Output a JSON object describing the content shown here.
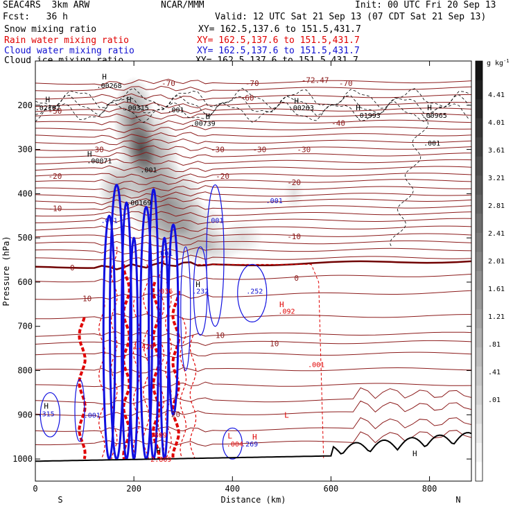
{
  "header": {
    "line1_left": "SEAC4RS  3km ARW",
    "line1_center": "NCAR/MMM",
    "line1_right": "Init: 00 UTC Fri 20 Sep 13",
    "line2_left": "Fcst:   36 h",
    "line2_right": "Valid: 12 UTC Sat 21 Sep 13 (07 CDT Sat 21 Sep 13)",
    "fields": [
      {
        "name": "Snow mixing ratio",
        "xy": "XY= 162.5,137.6 to 151.5,431.7",
        "color": "#000000"
      },
      {
        "name": "Rain water mixing ratio",
        "xy": "XY= 162.5,137.6 to 151.5,431.7",
        "color": "#e00000"
      },
      {
        "name": "Cloud water mixing ratio",
        "xy": "XY= 162.5,137.6 to 151.5,431.7",
        "color": "#1010d0"
      },
      {
        "name": "Cloud ice mixing ratio",
        "xy": "XY= 162.5,137.6 to 151.5,431.7",
        "color": "#000000"
      }
    ]
  },
  "chart_data": {
    "type": "heatmap",
    "xlabel": "Distance (km)",
    "ylabel": "Pressure (hPa)",
    "xlim": [
      0,
      885
    ],
    "ylim": [
      1050,
      100
    ],
    "x_ticks": [
      0,
      200,
      400,
      600,
      800
    ],
    "y_ticks": [
      200,
      300,
      400,
      500,
      600,
      700,
      800,
      900,
      1000
    ],
    "x_end_labels": {
      "left": "S",
      "right": "N"
    },
    "colorbar": {
      "unit": "g kg",
      "unit_exp": "-1",
      "ticks": [
        "4.41",
        "4.01",
        "3.61",
        "3.21",
        "2.81",
        "2.41",
        "2.01",
        "1.61",
        "1.21",
        ".81",
        ".41",
        ".01"
      ]
    },
    "temperature_contours": [
      {
        "label": "-70",
        "points": [
          [
            270,
            150
          ],
          [
            440,
            150
          ],
          [
            630,
            150
          ]
        ]
      },
      {
        "label": "-72.47",
        "points": [
          [
            568,
            143
          ]
        ]
      },
      {
        "label": "-60",
        "points": [
          [
            430,
            183
          ]
        ]
      },
      {
        "label": "-50",
        "points": [
          [
            40,
            213
          ]
        ]
      },
      {
        "label": "-40",
        "points": [
          [
            615,
            240
          ]
        ]
      },
      {
        "label": "-30",
        "points": [
          [
            125,
            300
          ],
          [
            370,
            300
          ],
          [
            455,
            300
          ],
          [
            545,
            300
          ]
        ]
      },
      {
        "label": "-20",
        "points": [
          [
            40,
            360
          ],
          [
            380,
            360
          ],
          [
            525,
            374
          ]
        ]
      },
      {
        "label": "-10",
        "points": [
          [
            40,
            433
          ],
          [
            525,
            497
          ]
        ]
      },
      {
        "label": "0",
        "points": [
          [
            75,
            567
          ],
          [
            530,
            591
          ]
        ]
      },
      {
        "label": "10",
        "points": [
          [
            105,
            637
          ],
          [
            375,
            720
          ],
          [
            485,
            739
          ]
        ]
      },
      {
        "label": "20",
        "points": [
          [
            285,
            899
          ]
        ]
      }
    ],
    "cloud_ice_annotations": [
      {
        "label": ".00268",
        "x": 150,
        "p": 155
      },
      {
        "label": ".02102",
        "x": 25,
        "p": 205
      },
      {
        "label": ".00315",
        "x": 205,
        "p": 205
      },
      {
        "label": ".001",
        "x": 285,
        "p": 210
      },
      {
        "label": ".00739",
        "x": 340,
        "p": 240
      },
      {
        "label": ".00263",
        "x": 540,
        "p": 205
      },
      {
        "label": ".01993",
        "x": 675,
        "p": 222
      },
      {
        "label": ".00965",
        "x": 810,
        "p": 222
      },
      {
        "label": ".001",
        "x": 805,
        "p": 285
      },
      {
        "label": ".00071",
        "x": 130,
        "p": 325
      },
      {
        "label": ".001",
        "x": 230,
        "p": 345
      },
      {
        "label": ".00169",
        "x": 210,
        "p": 420
      }
    ],
    "cloud_water_annotations": [
      {
        "label": ".001",
        "x": 150,
        "p": 460
      },
      {
        "label": ".001",
        "x": 365,
        "p": 460
      },
      {
        "label": ".001",
        "x": 485,
        "p": 415
      },
      {
        "label": ".001",
        "x": 262,
        "p": 534
      },
      {
        "label": ".232",
        "x": 335,
        "p": 620
      },
      {
        "label": ".252",
        "x": 445,
        "p": 620
      },
      {
        "label": ".001",
        "x": 115,
        "p": 900
      },
      {
        "label": ".269",
        "x": 435,
        "p": 965
      },
      {
        "label": ".315",
        "x": 22,
        "p": 897
      }
    ],
    "rain_annotations": [
      {
        "label": ".092",
        "x": 510,
        "p": 665
      },
      {
        "label": ".001",
        "x": 570,
        "p": 786
      },
      {
        "label": ".036",
        "x": 262,
        "p": 620
      },
      {
        "label": ".004",
        "x": 405,
        "p": 965
      },
      {
        "label": "2.869",
        "x": 255,
        "p": 1000
      },
      {
        "label": ".809",
        "x": 250,
        "p": 945
      },
      {
        "label": "1.420",
        "x": 220,
        "p": 745
      }
    ],
    "extrema_markers": [
      {
        "label": "H",
        "x": 140,
        "p": 135
      },
      {
        "label": "H",
        "x": 25,
        "p": 187
      },
      {
        "label": "H",
        "x": 190,
        "p": 187
      },
      {
        "label": "H",
        "x": 350,
        "p": 225
      },
      {
        "label": "H",
        "x": 530,
        "p": 190
      },
      {
        "label": "H",
        "x": 655,
        "p": 205
      },
      {
        "label": "H",
        "x": 800,
        "p": 205
      },
      {
        "label": "H",
        "x": 110,
        "p": 310
      },
      {
        "label": "H",
        "x": 330,
        "p": 605
      },
      {
        "label": "H",
        "x": 500,
        "p": 650
      },
      {
        "label": "H",
        "x": 22,
        "p": 880
      },
      {
        "label": "H",
        "x": 445,
        "p": 950
      },
      {
        "label": "H",
        "x": 250,
        "p": 980
      },
      {
        "label": "L",
        "x": 395,
        "p": 947
      },
      {
        "label": "L",
        "x": 510,
        "p": 900
      },
      {
        "label": "H",
        "x": 770,
        "p": 987
      }
    ],
    "grid": false
  }
}
